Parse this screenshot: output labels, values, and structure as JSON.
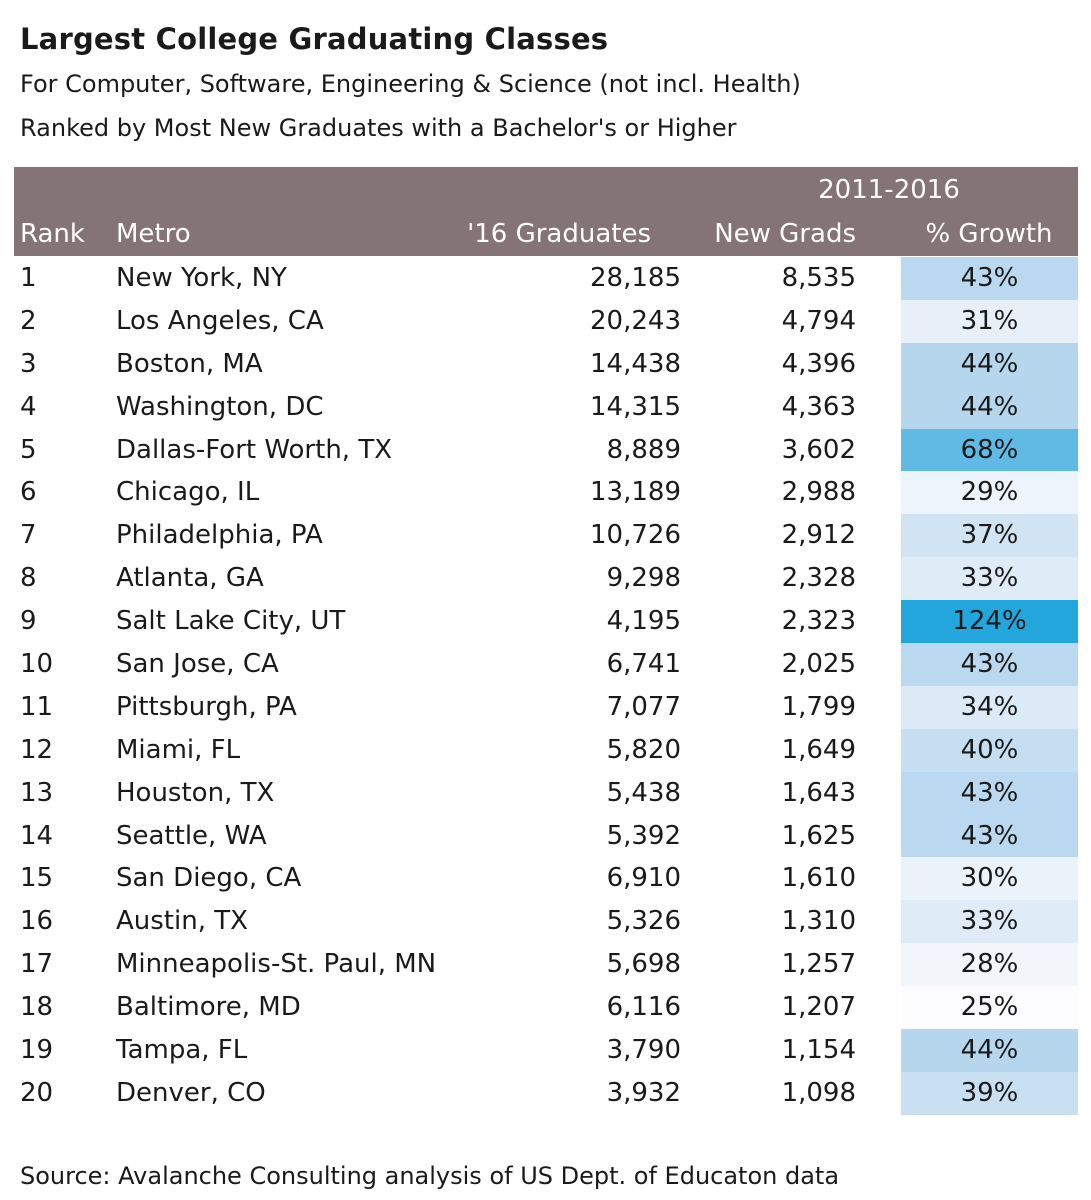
{
  "title": "Largest College Graduating Classes",
  "subtitle1": "For Computer, Software, Engineering & Science (not incl. Health)",
  "subtitle2": "Ranked by Most New Graduates with a Bachelor's or Higher",
  "header": {
    "period": "2011-2016",
    "rank": "Rank",
    "metro": "Metro",
    "graduates": "'16 Graduates",
    "new_grads": "New Grads",
    "growth": "% Growth"
  },
  "source": "Source:  Avalanche Consulting analysis of US Dept. of Educaton data",
  "colors": {
    "header_bg": "#857476",
    "growth_low": "#fdfcfe",
    "growth_mid": "#b6d6ee",
    "growth_high": "#22a6dc"
  },
  "chart_data": {
    "type": "table",
    "columns": [
      "Rank",
      "Metro",
      "'16 Graduates",
      "New Grads",
      "% Growth"
    ],
    "rows": [
      {
        "rank": "1",
        "metro": "New York, NY",
        "graduates": "28,185",
        "new_grads": "8,535",
        "growth": "43%",
        "growth_value": 43
      },
      {
        "rank": "2",
        "metro": "Los Angeles, CA",
        "graduates": "20,243",
        "new_grads": "4,794",
        "growth": "31%",
        "growth_value": 31
      },
      {
        "rank": "3",
        "metro": "Boston, MA",
        "graduates": "14,438",
        "new_grads": "4,396",
        "growth": "44%",
        "growth_value": 44
      },
      {
        "rank": "4",
        "metro": "Washington, DC",
        "graduates": "14,315",
        "new_grads": "4,363",
        "growth": "44%",
        "growth_value": 44
      },
      {
        "rank": "5",
        "metro": "Dallas-Fort Worth, TX",
        "graduates": "8,889",
        "new_grads": "3,602",
        "growth": "68%",
        "growth_value": 68
      },
      {
        "rank": "6",
        "metro": "Chicago, IL",
        "graduates": "13,189",
        "new_grads": "2,988",
        "growth": "29%",
        "growth_value": 29
      },
      {
        "rank": "7",
        "metro": "Philadelphia, PA",
        "graduates": "10,726",
        "new_grads": "2,912",
        "growth": "37%",
        "growth_value": 37
      },
      {
        "rank": "8",
        "metro": "Atlanta, GA",
        "graduates": "9,298",
        "new_grads": "2,328",
        "growth": "33%",
        "growth_value": 33
      },
      {
        "rank": "9",
        "metro": "Salt Lake City, UT",
        "graduates": "4,195",
        "new_grads": "2,323",
        "growth": "124%",
        "growth_value": 124
      },
      {
        "rank": "10",
        "metro": "San Jose, CA",
        "graduates": "6,741",
        "new_grads": "2,025",
        "growth": "43%",
        "growth_value": 43
      },
      {
        "rank": "11",
        "metro": "Pittsburgh, PA",
        "graduates": "7,077",
        "new_grads": "1,799",
        "growth": "34%",
        "growth_value": 34
      },
      {
        "rank": "12",
        "metro": "Miami, FL",
        "graduates": "5,820",
        "new_grads": "1,649",
        "growth": "40%",
        "growth_value": 40
      },
      {
        "rank": "13",
        "metro": "Houston, TX",
        "graduates": "5,438",
        "new_grads": "1,643",
        "growth": "43%",
        "growth_value": 43
      },
      {
        "rank": "14",
        "metro": "Seattle, WA",
        "graduates": "5,392",
        "new_grads": "1,625",
        "growth": "43%",
        "growth_value": 43
      },
      {
        "rank": "15",
        "metro": "San Diego, CA",
        "graduates": "6,910",
        "new_grads": "1,610",
        "growth": "30%",
        "growth_value": 30
      },
      {
        "rank": "16",
        "metro": "Austin, TX",
        "graduates": "5,326",
        "new_grads": "1,310",
        "growth": "33%",
        "growth_value": 33
      },
      {
        "rank": "17",
        "metro": "Minneapolis-St. Paul, MN",
        "graduates": "5,698",
        "new_grads": "1,257",
        "growth": "28%",
        "growth_value": 28
      },
      {
        "rank": "18",
        "metro": "Baltimore, MD",
        "graduates": "6,116",
        "new_grads": "1,207",
        "growth": "25%",
        "growth_value": 25
      },
      {
        "rank": "19",
        "metro": "Tampa, FL",
        "graduates": "3,790",
        "new_grads": "1,154",
        "growth": "44%",
        "growth_value": 44
      },
      {
        "rank": "20",
        "metro": "Denver, CO",
        "graduates": "3,932",
        "new_grads": "1,098",
        "growth": "39%",
        "growth_value": 39
      }
    ]
  }
}
